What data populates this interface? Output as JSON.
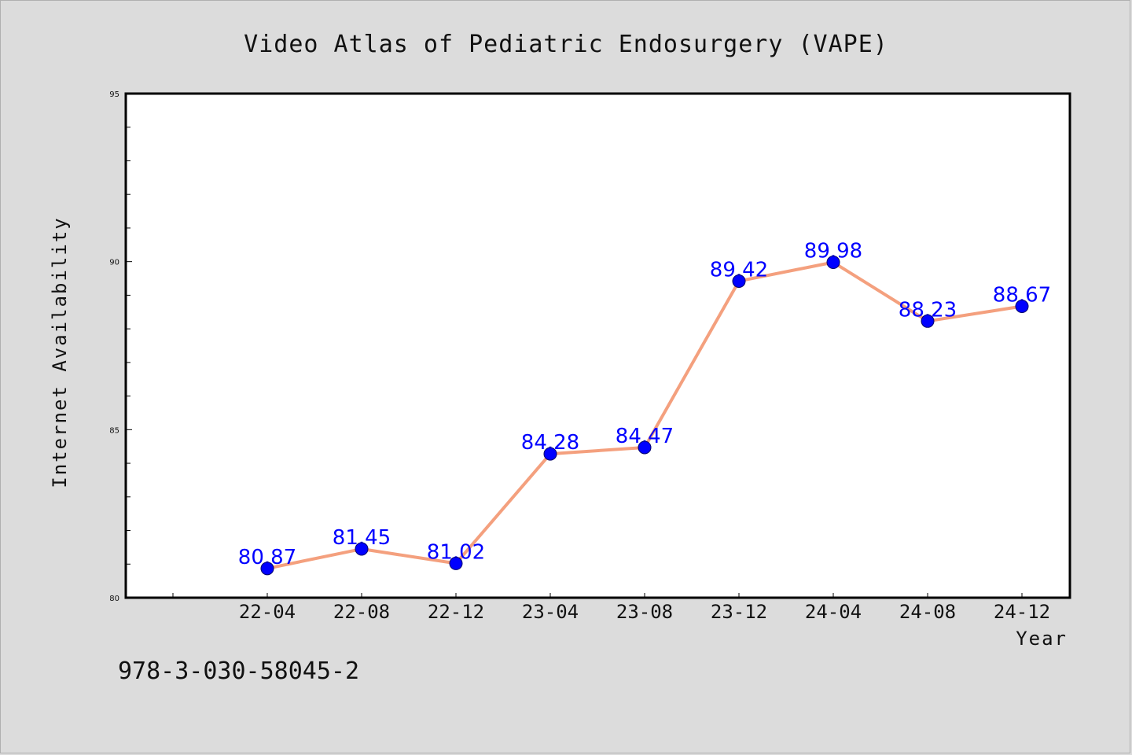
{
  "chart_data": {
    "type": "line",
    "title": "Video Atlas of Pediatric Endosurgery (VAPE)",
    "xlabel": "Year",
    "ylabel": "Internet Availability",
    "categories": [
      "22-04",
      "22-08",
      "22-12",
      "23-04",
      "23-08",
      "23-12",
      "24-04",
      "24-08",
      "24-12"
    ],
    "series": [
      {
        "values": [
          80.87,
          81.45,
          81.02,
          84.28,
          84.47,
          89.42,
          89.98,
          88.23,
          88.67
        ],
        "labels": [
          "80.87",
          "81.45",
          "81.02",
          "84.28",
          "84.47",
          "89.42",
          "89.98",
          "88.23",
          "88.67"
        ]
      }
    ],
    "ylim": [
      80,
      95
    ],
    "yticks": [
      "80",
      "85",
      "90",
      "95"
    ],
    "grid": false,
    "line_color": "#f4a07e",
    "marker_color": "#0000ff",
    "label_color": "#0000ff"
  },
  "footnote": "978-3-030-58045-2"
}
